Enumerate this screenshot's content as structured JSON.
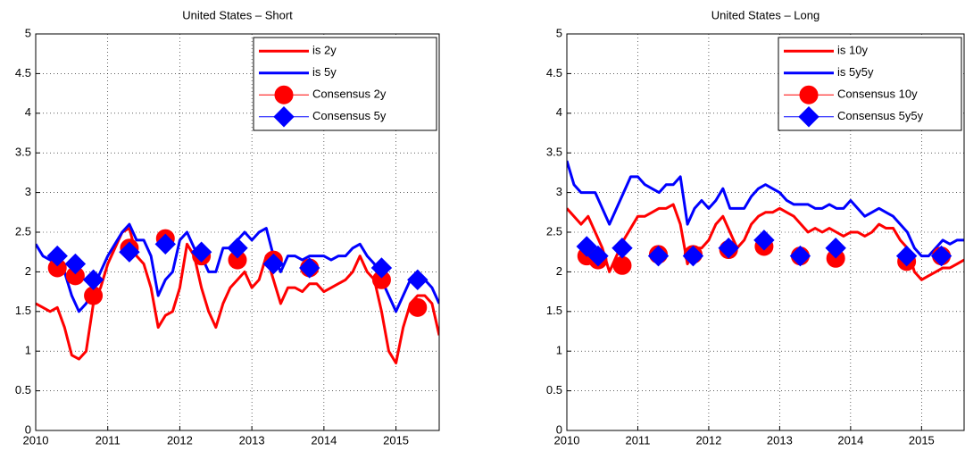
{
  "chart_data": [
    {
      "type": "line",
      "title": "United States – Short",
      "grid": true,
      "legend_position": "upper right",
      "xlim": [
        2010,
        2015.6
      ],
      "xticks": [
        2010,
        2011,
        2012,
        2013,
        2014,
        2015
      ],
      "ylim": [
        0,
        5
      ],
      "yticks": [
        0,
        0.5,
        1,
        1.5,
        2,
        2.5,
        3,
        3.5,
        4,
        4.5,
        5
      ],
      "series": [
        {
          "name": "is 2y",
          "color": "#ff0000",
          "marker": "none",
          "x": [
            2010.0,
            2010.1,
            2010.2,
            2010.3,
            2010.4,
            2010.5,
            2010.6,
            2010.7,
            2010.8,
            2010.9,
            2011.0,
            2011.1,
            2011.2,
            2011.3,
            2011.4,
            2011.5,
            2011.6,
            2011.7,
            2011.8,
            2011.9,
            2012.0,
            2012.1,
            2012.2,
            2012.3,
            2012.4,
            2012.5,
            2012.6,
            2012.7,
            2012.8,
            2012.9,
            2013.0,
            2013.1,
            2013.2,
            2013.3,
            2013.4,
            2013.5,
            2013.6,
            2013.7,
            2013.8,
            2013.9,
            2014.0,
            2014.1,
            2014.2,
            2014.3,
            2014.4,
            2014.5,
            2014.6,
            2014.7,
            2014.8,
            2014.9,
            2015.0,
            2015.1,
            2015.2,
            2015.3,
            2015.4,
            2015.5,
            2015.6
          ],
          "values": [
            1.6,
            1.55,
            1.5,
            1.55,
            1.3,
            0.95,
            0.9,
            1.0,
            1.6,
            1.8,
            2.1,
            2.3,
            2.5,
            2.55,
            2.2,
            2.1,
            1.8,
            1.3,
            1.45,
            1.5,
            1.8,
            2.35,
            2.2,
            1.8,
            1.5,
            1.3,
            1.6,
            1.8,
            1.9,
            2.0,
            1.8,
            1.9,
            2.2,
            1.9,
            1.6,
            1.8,
            1.8,
            1.75,
            1.85,
            1.85,
            1.75,
            1.8,
            1.85,
            1.9,
            2.0,
            2.2,
            2.0,
            1.9,
            1.5,
            1.0,
            0.85,
            1.3,
            1.6,
            1.7,
            1.7,
            1.6,
            1.2
          ]
        },
        {
          "name": "is 5y",
          "color": "#0000ff",
          "marker": "none",
          "x": [
            2010.0,
            2010.1,
            2010.2,
            2010.3,
            2010.4,
            2010.5,
            2010.6,
            2010.7,
            2010.8,
            2010.9,
            2011.0,
            2011.1,
            2011.2,
            2011.3,
            2011.4,
            2011.5,
            2011.6,
            2011.7,
            2011.8,
            2011.9,
            2012.0,
            2012.1,
            2012.2,
            2012.3,
            2012.4,
            2012.5,
            2012.6,
            2012.7,
            2012.8,
            2012.9,
            2013.0,
            2013.1,
            2013.2,
            2013.3,
            2013.4,
            2013.5,
            2013.6,
            2013.7,
            2013.8,
            2013.9,
            2014.0,
            2014.1,
            2014.2,
            2014.3,
            2014.4,
            2014.5,
            2014.6,
            2014.7,
            2014.8,
            2014.9,
            2015.0,
            2015.1,
            2015.2,
            2015.3,
            2015.4,
            2015.5,
            2015.6
          ],
          "values": [
            2.35,
            2.2,
            2.15,
            2.1,
            2.0,
            1.7,
            1.5,
            1.6,
            1.8,
            2.0,
            2.2,
            2.35,
            2.5,
            2.6,
            2.4,
            2.4,
            2.2,
            1.7,
            1.9,
            2.0,
            2.4,
            2.5,
            2.3,
            2.2,
            2.0,
            2.0,
            2.3,
            2.3,
            2.4,
            2.5,
            2.4,
            2.5,
            2.55,
            2.2,
            2.0,
            2.2,
            2.2,
            2.15,
            2.2,
            2.2,
            2.2,
            2.15,
            2.2,
            2.2,
            2.3,
            2.35,
            2.2,
            2.1,
            1.9,
            1.7,
            1.5,
            1.7,
            1.9,
            1.9,
            1.9,
            1.8,
            1.6
          ]
        },
        {
          "name": "Consensus 2y",
          "color": "#ff0000",
          "marker": "circle",
          "x": [
            2010.3,
            2010.55,
            2010.8,
            2011.3,
            2011.8,
            2012.3,
            2012.8,
            2013.3,
            2013.8,
            2014.8,
            2015.3
          ],
          "values": [
            2.05,
            1.95,
            1.7,
            2.3,
            2.42,
            2.2,
            2.15,
            2.15,
            2.05,
            1.9,
            1.55
          ]
        },
        {
          "name": "Consensus 5y",
          "color": "#0000ff",
          "marker": "diamond",
          "x": [
            2010.3,
            2010.55,
            2010.8,
            2011.3,
            2011.8,
            2012.3,
            2012.8,
            2013.3,
            2013.8,
            2014.8,
            2015.3
          ],
          "values": [
            2.2,
            2.1,
            1.9,
            2.25,
            2.35,
            2.25,
            2.3,
            2.1,
            2.05,
            2.05,
            1.9
          ]
        }
      ]
    },
    {
      "type": "line",
      "title": "United States – Long",
      "grid": true,
      "legend_position": "upper right",
      "xlim": [
        2010,
        2015.6
      ],
      "xticks": [
        2010,
        2011,
        2012,
        2013,
        2014,
        2015
      ],
      "ylim": [
        0,
        5
      ],
      "yticks": [
        0,
        0.5,
        1,
        1.5,
        2,
        2.5,
        3,
        3.5,
        4,
        4.5,
        5
      ],
      "series": [
        {
          "name": "is 10y",
          "color": "#ff0000",
          "marker": "none",
          "x": [
            2010.0,
            2010.1,
            2010.2,
            2010.3,
            2010.4,
            2010.5,
            2010.6,
            2010.7,
            2010.8,
            2010.9,
            2011.0,
            2011.1,
            2011.2,
            2011.3,
            2011.4,
            2011.5,
            2011.6,
            2011.7,
            2011.8,
            2011.9,
            2012.0,
            2012.1,
            2012.2,
            2012.3,
            2012.4,
            2012.5,
            2012.6,
            2012.7,
            2012.8,
            2012.9,
            2013.0,
            2013.1,
            2013.2,
            2013.3,
            2013.4,
            2013.5,
            2013.6,
            2013.7,
            2013.8,
            2013.9,
            2014.0,
            2014.1,
            2014.2,
            2014.3,
            2014.4,
            2014.5,
            2014.6,
            2014.7,
            2014.8,
            2014.9,
            2015.0,
            2015.1,
            2015.2,
            2015.3,
            2015.4,
            2015.5,
            2015.6
          ],
          "values": [
            2.8,
            2.7,
            2.6,
            2.7,
            2.5,
            2.3,
            2.0,
            2.2,
            2.4,
            2.55,
            2.7,
            2.7,
            2.75,
            2.8,
            2.8,
            2.85,
            2.6,
            2.1,
            2.3,
            2.3,
            2.4,
            2.6,
            2.7,
            2.5,
            2.3,
            2.4,
            2.6,
            2.7,
            2.75,
            2.75,
            2.8,
            2.75,
            2.7,
            2.6,
            2.5,
            2.55,
            2.5,
            2.55,
            2.5,
            2.45,
            2.5,
            2.5,
            2.45,
            2.5,
            2.6,
            2.55,
            2.55,
            2.4,
            2.3,
            2.0,
            1.9,
            1.95,
            2.0,
            2.05,
            2.05,
            2.1,
            2.15
          ]
        },
        {
          "name": "is 5y5y",
          "color": "#0000ff",
          "marker": "none",
          "x": [
            2010.0,
            2010.1,
            2010.2,
            2010.3,
            2010.4,
            2010.5,
            2010.6,
            2010.7,
            2010.8,
            2010.9,
            2011.0,
            2011.1,
            2011.2,
            2011.3,
            2011.4,
            2011.5,
            2011.6,
            2011.7,
            2011.8,
            2011.9,
            2012.0,
            2012.1,
            2012.2,
            2012.3,
            2012.4,
            2012.5,
            2012.6,
            2012.7,
            2012.8,
            2012.9,
            2013.0,
            2013.1,
            2013.2,
            2013.3,
            2013.4,
            2013.5,
            2013.6,
            2013.7,
            2013.8,
            2013.9,
            2014.0,
            2014.1,
            2014.2,
            2014.3,
            2014.4,
            2014.5,
            2014.6,
            2014.7,
            2014.8,
            2014.9,
            2015.0,
            2015.1,
            2015.2,
            2015.3,
            2015.4,
            2015.5,
            2015.6
          ],
          "values": [
            3.4,
            3.1,
            3.0,
            3.0,
            3.0,
            2.8,
            2.6,
            2.8,
            3.0,
            3.2,
            3.2,
            3.1,
            3.05,
            3.0,
            3.1,
            3.1,
            3.2,
            2.6,
            2.8,
            2.9,
            2.8,
            2.9,
            3.05,
            2.8,
            2.8,
            2.8,
            2.95,
            3.05,
            3.1,
            3.05,
            3.0,
            2.9,
            2.85,
            2.85,
            2.85,
            2.8,
            2.8,
            2.85,
            2.8,
            2.8,
            2.9,
            2.8,
            2.7,
            2.75,
            2.8,
            2.75,
            2.7,
            2.6,
            2.5,
            2.3,
            2.2,
            2.2,
            2.3,
            2.4,
            2.35,
            2.4,
            2.4
          ]
        },
        {
          "name": "Consensus 10y",
          "color": "#ff0000",
          "marker": "circle",
          "x": [
            2010.28,
            2010.44,
            2010.78,
            2011.29,
            2011.78,
            2012.28,
            2012.78,
            2013.29,
            2013.79,
            2014.79,
            2015.28
          ],
          "values": [
            2.2,
            2.15,
            2.08,
            2.22,
            2.22,
            2.28,
            2.32,
            2.2,
            2.17,
            2.13,
            2.2
          ]
        },
        {
          "name": "Consensus 5y5y",
          "color": "#0000ff",
          "marker": "diamond",
          "x": [
            2010.28,
            2010.44,
            2010.78,
            2011.29,
            2011.78,
            2012.28,
            2012.78,
            2013.29,
            2013.79,
            2014.79,
            2015.28
          ],
          "values": [
            2.32,
            2.2,
            2.3,
            2.2,
            2.2,
            2.3,
            2.4,
            2.2,
            2.3,
            2.2,
            2.2
          ]
        }
      ]
    }
  ]
}
